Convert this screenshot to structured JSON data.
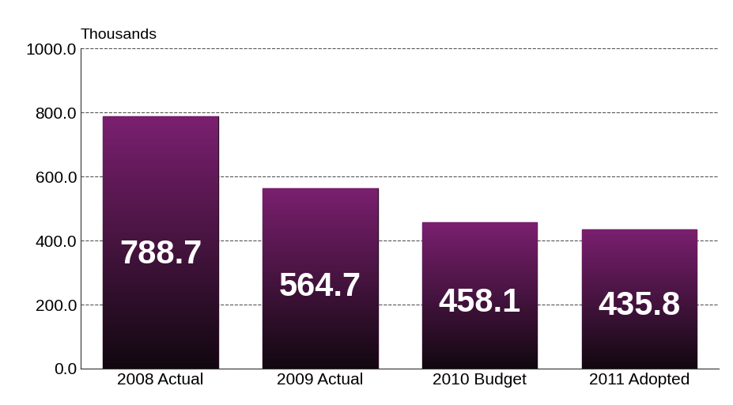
{
  "chart_data": {
    "type": "bar",
    "y_label": "Thousands",
    "categories": [
      "2008 Actual",
      "2009 Actual",
      "2010 Budget",
      "2011 Adopted"
    ],
    "values": [
      788.7,
      564.7,
      458.1,
      435.8
    ],
    "color": "#7b2070",
    "ylim": [
      0,
      1000
    ],
    "yticks": [
      {
        "value": 0,
        "label": "0.0"
      },
      {
        "value": 200,
        "label": "200.0"
      },
      {
        "value": 400,
        "label": "400.0"
      },
      {
        "value": 600,
        "label": "600.0"
      },
      {
        "value": 800,
        "label": "800.0"
      },
      {
        "value": 1000,
        "label": "1000.0"
      }
    ],
    "grid": true,
    "data_labels": true
  }
}
